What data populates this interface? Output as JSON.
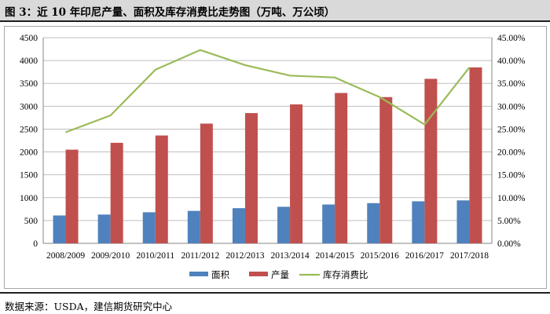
{
  "header": {
    "title": "图 3：近 10 年印尼产量、面积及库存消费比走势图（万吨、万公顷）"
  },
  "footer": {
    "source": "数据来源：USDA，建信期货研究中心"
  },
  "chart_data": {
    "type": "bar",
    "title": "",
    "xlabel": "",
    "ylabel": "",
    "categories": [
      "2008/2009",
      "2009/2010",
      "2010/2011",
      "2011/2012",
      "2012/2013",
      "2013/2014",
      "2014/2015",
      "2015/2016",
      "2016/2017",
      "2017/2018"
    ],
    "ylim": [
      0,
      4500
    ],
    "y_ticks": [
      0,
      500,
      1000,
      1500,
      2000,
      2500,
      3000,
      3500,
      4000,
      4500
    ],
    "y2lim": [
      0,
      0.45
    ],
    "y2_ticks": [
      "0.00%",
      "5.00%",
      "10.00%",
      "15.00%",
      "20.00%",
      "25.00%",
      "30.00%",
      "35.00%",
      "40.00%",
      "45.00%"
    ],
    "grid": true,
    "legend_position": "bottom",
    "series": [
      {
        "name": "面积",
        "type": "bar",
        "axis": "left",
        "color": "#4f81bd",
        "values": [
          610,
          630,
          680,
          710,
          770,
          800,
          850,
          880,
          920,
          940
        ]
      },
      {
        "name": "产量",
        "type": "bar",
        "axis": "left",
        "color": "#c0504d",
        "values": [
          2050,
          2200,
          2360,
          2620,
          2850,
          3040,
          3290,
          3200,
          3600,
          3850
        ]
      },
      {
        "name": "库存消费比",
        "type": "line",
        "axis": "right",
        "color": "#9bbb59",
        "values": [
          0.243,
          0.28,
          0.38,
          0.423,
          0.39,
          0.367,
          0.363,
          0.32,
          0.26,
          0.385
        ]
      }
    ]
  }
}
